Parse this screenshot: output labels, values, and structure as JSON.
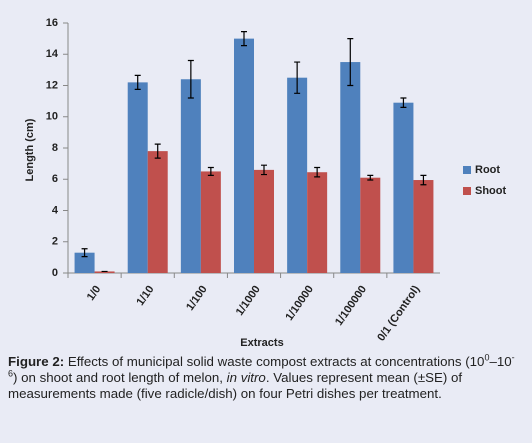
{
  "chart_data": {
    "type": "bar",
    "categories": [
      "1/0",
      "1/10",
      "1/100",
      "1/1000",
      "1/10000",
      "1/100000",
      "0/1 (Control)"
    ],
    "series": [
      {
        "name": "Root",
        "color": "#4f81bd",
        "values": [
          1.3,
          12.2,
          12.4,
          15.0,
          12.5,
          13.5,
          10.9
        ],
        "errors": [
          0.25,
          0.45,
          1.2,
          0.45,
          1.0,
          1.5,
          0.3
        ]
      },
      {
        "name": "Shoot",
        "color": "#c0504d",
        "values": [
          0.1,
          7.8,
          6.5,
          6.6,
          6.45,
          6.1,
          5.95
        ],
        "errors": [
          0,
          0.45,
          0.25,
          0.3,
          0.3,
          0.15,
          0.3
        ]
      }
    ],
    "xlabel": "Extracts",
    "ylabel": "Length (cm)",
    "ylim": [
      0,
      16
    ],
    "yticks": [
      0,
      2,
      4,
      6,
      8,
      10,
      12,
      14,
      16
    ],
    "grid": false,
    "legend": "right"
  },
  "caption": {
    "label": "Figure 2:",
    "parts": [
      "Effects of municipal solid waste compost extracts at concentrations (10",
      "0",
      "–10",
      "-6",
      ") on shoot and root length of melon, ",
      "in vitro",
      ". Values represent mean (±SE) of measurements made (five radicle/dish) on four Petri dishes per treatment."
    ]
  }
}
